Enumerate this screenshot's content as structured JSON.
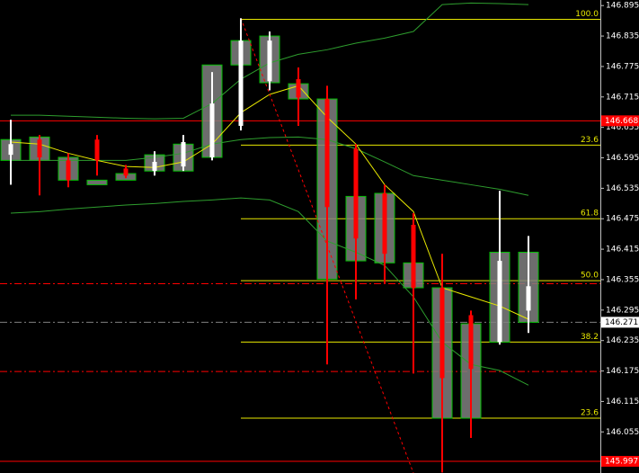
{
  "chart_data": {
    "type": "candlestick",
    "ylim": [
      145.974,
      146.906
    ],
    "yticks": [
      146.895,
      146.835,
      146.775,
      146.715,
      146.655,
      146.595,
      146.535,
      146.475,
      146.415,
      146.355,
      146.295,
      146.235,
      146.175,
      146.115,
      146.055
    ],
    "up_color": "#ffffff",
    "down_color": "#ff0000",
    "box_color": "#808080",
    "box_edge_color": "#00c000",
    "candles": {
      "open": [
        146.601,
        146.631,
        146.59,
        146.631,
        146.574,
        146.569,
        146.578,
        146.596,
        146.658,
        146.746,
        146.75,
        146.711,
        146.613,
        146.525,
        146.463,
        146.339,
        146.285,
        146.232,
        146.294
      ],
      "high": [
        146.67,
        146.64,
        146.604,
        146.64,
        146.581,
        146.608,
        146.64,
        146.764,
        146.87,
        146.844,
        146.773,
        146.737,
        146.622,
        146.542,
        146.486,
        146.406,
        146.294,
        146.53,
        146.441
      ],
      "low": [
        146.542,
        146.521,
        146.537,
        146.56,
        146.555,
        146.56,
        146.569,
        146.59,
        146.649,
        146.728,
        146.658,
        146.188,
        146.316,
        146.347,
        146.17,
        145.975,
        146.043,
        146.227,
        146.25
      ],
      "close": [
        146.622,
        146.596,
        146.551,
        146.59,
        146.56,
        146.587,
        146.626,
        146.702,
        146.826,
        146.826,
        146.714,
        146.498,
        146.436,
        146.406,
        146.339,
        146.161,
        146.179,
        146.392,
        146.342
      ]
    },
    "boxes": {
      "top": [
        146.631,
        146.636,
        146.596,
        146.551,
        146.564,
        146.601,
        146.622,
        146.778,
        146.826,
        146.835,
        146.741,
        146.711,
        146.519,
        146.525,
        146.388,
        146.339,
        146.268,
        146.409,
        146.409
      ],
      "bottom": [
        146.59,
        146.59,
        146.551,
        146.542,
        146.551,
        146.569,
        146.569,
        146.596,
        146.778,
        146.743,
        146.711,
        146.356,
        146.392,
        146.388,
        146.339,
        146.082,
        146.082,
        146.232,
        146.271
      ]
    },
    "series": [
      {
        "color": "#2e9e2e",
        "values": [
          146.679,
          146.679,
          146.677,
          146.675,
          146.673,
          146.672,
          146.673,
          146.702,
          146.75,
          146.782,
          146.799,
          146.808,
          146.821,
          146.831,
          146.844,
          146.897,
          146.9,
          146.899,
          146.897
        ]
      },
      {
        "color": "#2e9e2e",
        "values": [
          146.59,
          146.59,
          146.59,
          146.59,
          146.59,
          146.596,
          146.604,
          146.622,
          146.631,
          146.635,
          146.636,
          146.631,
          146.613,
          146.587,
          146.56,
          146.551,
          146.542,
          146.533,
          146.521
        ]
      },
      {
        "color": "#2e9e2e",
        "values": [
          146.486,
          146.489,
          146.494,
          146.498,
          146.502,
          146.505,
          146.509,
          146.512,
          146.516,
          146.512,
          146.489,
          146.431,
          146.409,
          146.383,
          146.321,
          146.232,
          146.188,
          146.176,
          146.147
        ]
      },
      {
        "color": "#e8e800",
        "values": [
          146.626,
          146.622,
          146.604,
          146.59,
          146.578,
          146.576,
          146.587,
          146.622,
          146.684,
          146.72,
          146.737,
          146.675,
          146.622,
          146.542,
          146.489,
          146.339,
          146.321,
          146.303,
          146.277
        ]
      }
    ],
    "fib_color": "#e8e800",
    "fib_levels": [
      {
        "label": "100.0",
        "price": 146.868
      },
      {
        "label": "23.6",
        "price": 146.62
      },
      {
        "label": "61.8",
        "price": 146.475
      },
      {
        "label": "50.0",
        "price": 146.353
      },
      {
        "label": "38.2",
        "price": 146.232
      },
      {
        "label": "23.6",
        "price": 146.082
      }
    ],
    "price_lines": [
      {
        "price": 146.668,
        "color": "#ff0000",
        "style": "solid"
      },
      {
        "price": 145.997,
        "color": "#ff0000",
        "style": "solid"
      },
      {
        "price": 146.271,
        "color": "#808080",
        "style": "dashdot"
      }
    ],
    "level_lines": [
      {
        "price": 146.347,
        "color": "#ff0000"
      },
      {
        "price": 146.174,
        "color": "#ff0000"
      }
    ],
    "trendline": {
      "index": [
        8,
        14
      ],
      "price": [
        146.87,
        145.974
      ],
      "color": "#ff0000"
    }
  }
}
